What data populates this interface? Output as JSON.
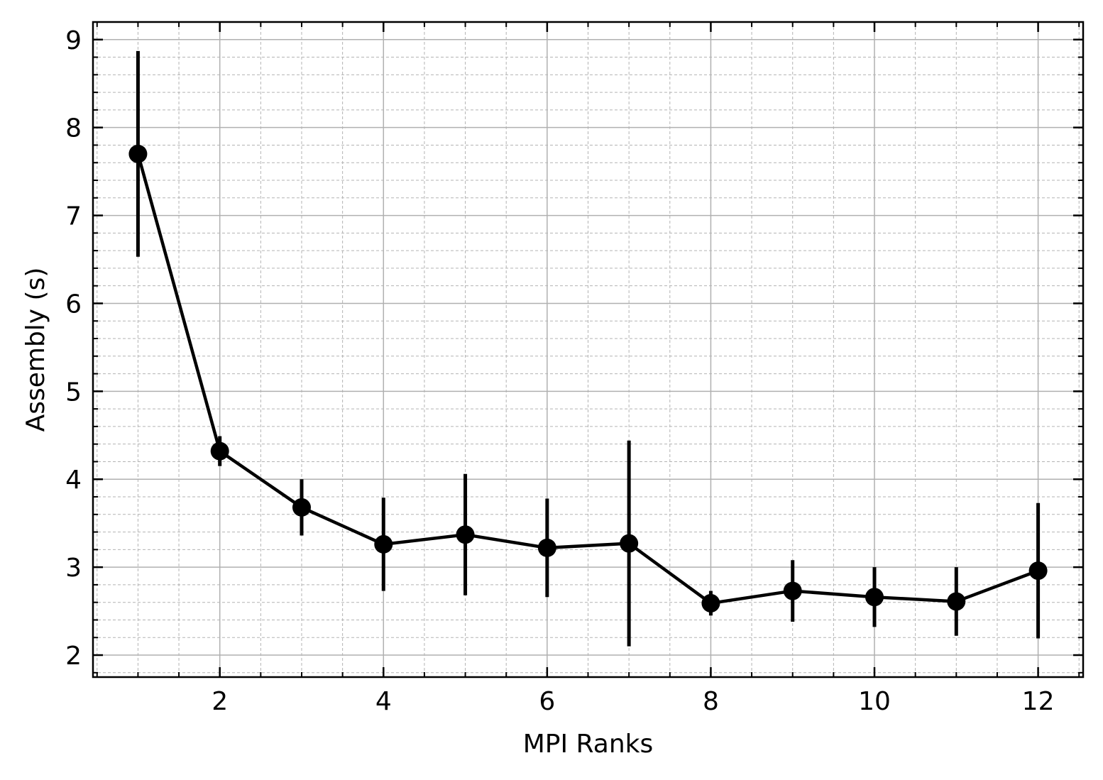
{
  "chart_data": {
    "type": "line",
    "title": "",
    "xlabel": "MPI Ranks",
    "ylabel": "Assembly (s)",
    "xlim": [
      0.45,
      12.55
    ],
    "ylim": [
      1.75,
      9.2
    ],
    "xticks": [
      2,
      4,
      6,
      8,
      10,
      12
    ],
    "yticks": [
      2,
      3,
      4,
      5,
      6,
      7,
      8,
      9
    ],
    "grid": {
      "major": true,
      "minor": true
    },
    "series": [
      {
        "color": "#000000",
        "x": [
          1,
          2,
          3,
          4,
          5,
          6,
          7,
          8,
          9,
          10,
          11,
          12
        ],
        "y": [
          7.7,
          4.32,
          3.68,
          3.26,
          3.37,
          3.22,
          3.27,
          2.59,
          2.73,
          2.66,
          2.61,
          2.96
        ],
        "yerr": [
          1.17,
          0.17,
          0.32,
          0.53,
          0.69,
          0.56,
          1.17,
          0.14,
          0.35,
          0.34,
          0.39,
          0.77
        ]
      }
    ]
  }
}
